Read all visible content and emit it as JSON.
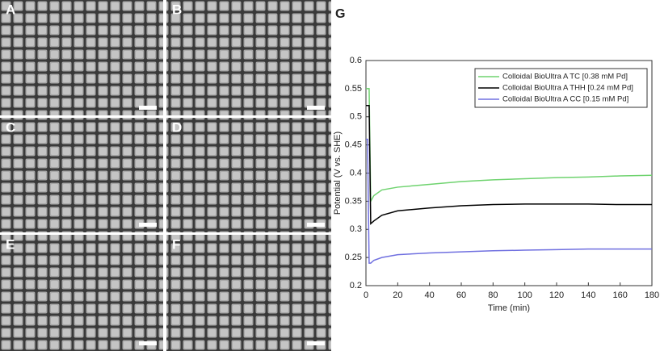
{
  "panels": [
    {
      "label": "A"
    },
    {
      "label": "B"
    },
    {
      "label": "C"
    },
    {
      "label": "D"
    },
    {
      "label": "E"
    },
    {
      "label": "F"
    }
  ],
  "chart_data": {
    "type": "line",
    "panel_label": "G",
    "x_label": "Time (min)",
    "y_label": "Potential (V vs. SHE)",
    "x": [
      0,
      1,
      2,
      3,
      5,
      10,
      20,
      40,
      60,
      80,
      100,
      120,
      140,
      160,
      180
    ],
    "series": [
      {
        "name": "Colloidal BioUltra A TC [0.38 mM Pd]",
        "color": "#6fd36f",
        "values": [
          0.55,
          0.55,
          0.55,
          0.35,
          0.36,
          0.37,
          0.375,
          0.38,
          0.385,
          0.388,
          0.39,
          0.392,
          0.393,
          0.395,
          0.396
        ]
      },
      {
        "name": "Colloidal BioUltra A THH [0.24 mM Pd]",
        "color": "#000000",
        "values": [
          0.52,
          0.52,
          0.52,
          0.31,
          0.315,
          0.325,
          0.333,
          0.338,
          0.342,
          0.344,
          0.345,
          0.345,
          0.345,
          0.344,
          0.344
        ]
      },
      {
        "name": "Colloidal BioUltra A CC [0.15 mM Pd]",
        "color": "#7070e0",
        "values": [
          0.46,
          0.46,
          0.24,
          0.24,
          0.245,
          0.25,
          0.255,
          0.258,
          0.26,
          0.262,
          0.263,
          0.264,
          0.265,
          0.265,
          0.265
        ]
      }
    ],
    "xlim": [
      0,
      180
    ],
    "xticks": [
      0,
      20,
      40,
      60,
      80,
      100,
      120,
      140,
      160,
      180
    ],
    "ylim": [
      0.2,
      0.6
    ],
    "yticks": [
      0.2,
      0.25,
      0.3,
      0.35,
      0.4,
      0.45,
      0.5,
      0.55,
      0.6
    ],
    "grid": false,
    "legend": "upper right"
  }
}
